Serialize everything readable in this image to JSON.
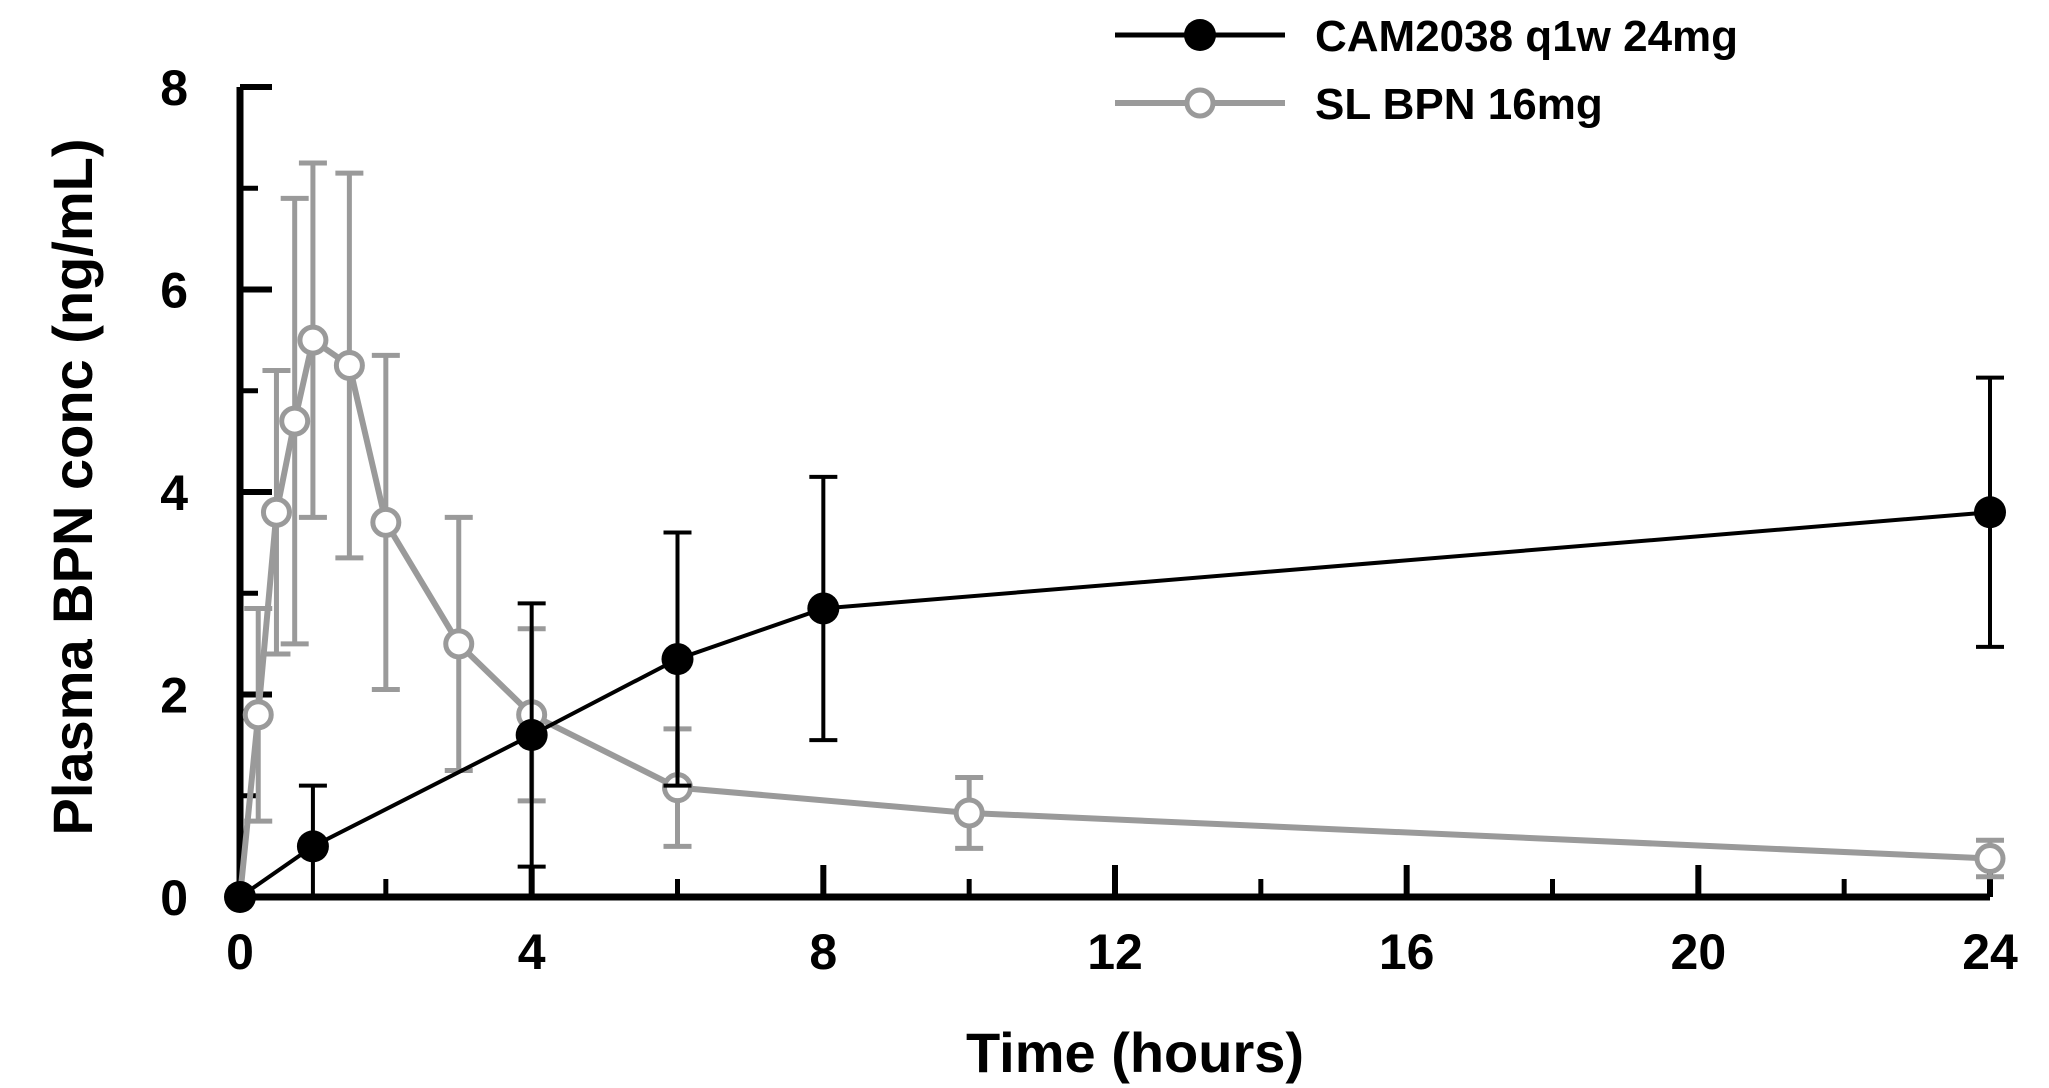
{
  "chart_data": {
    "type": "line",
    "title": "",
    "xlabel": "Time (hours)",
    "ylabel": "Plasma BPN conc (ng/mL)",
    "xlim": [
      0,
      24
    ],
    "ylim": [
      0,
      8
    ],
    "xticks": [
      0,
      4,
      8,
      12,
      16,
      20,
      24
    ],
    "yticks": [
      0,
      2,
      4,
      6,
      8
    ],
    "grid": false,
    "legend_position": "top-right",
    "series": [
      {
        "name": "CAM2038 q1w 24mg",
        "color": "#000000",
        "marker": "filled-circle",
        "x": [
          0,
          1,
          4,
          6,
          8,
          24
        ],
        "y": [
          0,
          0.5,
          1.6,
          2.35,
          2.85,
          3.8
        ],
        "err": [
          0,
          0.6,
          1.3,
          1.25,
          1.3,
          1.33
        ]
      },
      {
        "name": "SL BPN 16mg",
        "color": "#9a9a9a",
        "marker": "open-circle",
        "x": [
          0,
          0.25,
          0.5,
          0.75,
          1,
          1.5,
          2,
          3,
          4,
          6,
          10,
          24
        ],
        "y": [
          0,
          1.8,
          3.8,
          4.7,
          5.5,
          5.25,
          3.7,
          2.5,
          1.8,
          1.08,
          0.83,
          0.38
        ],
        "err": [
          0.05,
          1.05,
          1.4,
          2.2,
          1.75,
          1.9,
          1.65,
          1.25,
          0.85,
          0.58,
          0.35,
          0.18
        ]
      }
    ]
  }
}
